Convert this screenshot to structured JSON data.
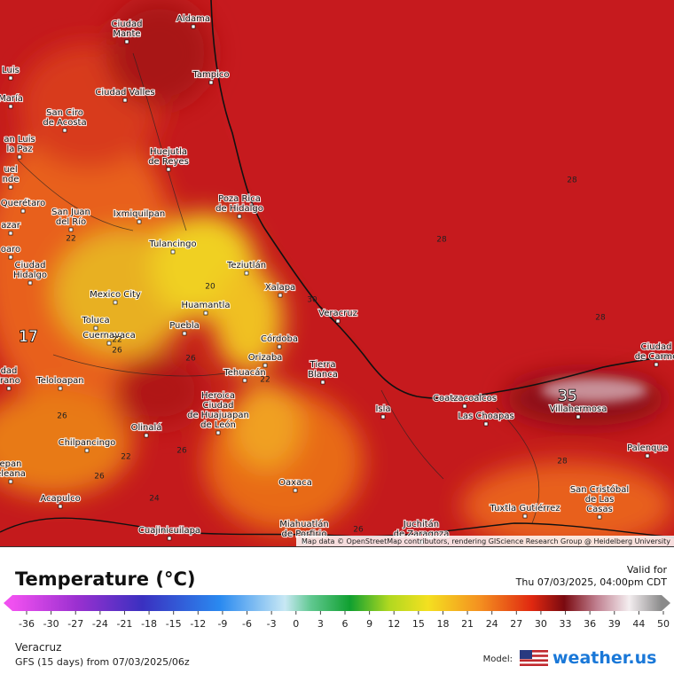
{
  "map": {
    "cities": [
      [
        "Aldama"
      ],
      [
        "Ciudad",
        "Mante"
      ],
      [
        "Tampico"
      ],
      [
        "Luis"
      ],
      [
        "María"
      ],
      [
        "an Luis",
        "la Paz"
      ],
      [
        "uel",
        "nde"
      ],
      [
        "Querétaro"
      ],
      [
        "azar"
      ],
      [
        "oaro"
      ],
      [
        "Ciudad",
        "Hidalgo"
      ],
      [
        "dad",
        "irano"
      ],
      [
        "Teloloapan"
      ],
      [
        "epan",
        "eleana"
      ],
      [
        "Ciudad Valles"
      ],
      [
        "San Ciro",
        "de Acosta"
      ],
      [
        "Huejutla",
        "de Reyes"
      ],
      [
        "Poza Rica",
        "de Hidalgo"
      ],
      [
        "San Juan",
        "del Río"
      ],
      [
        "Ixmiquilpan"
      ],
      [
        "Tulancingo"
      ],
      [
        "Teziutlán"
      ],
      [
        "Xalapa"
      ],
      [
        "Mexico City"
      ],
      [
        "Huamantla"
      ],
      [
        "Toluca"
      ],
      [
        "Puebla"
      ],
      [
        "Veracruz"
      ],
      [
        "Cuernavaca"
      ],
      [
        "Córdoba"
      ],
      [
        "Orizaba"
      ],
      [
        "Tierra",
        "Blanca"
      ],
      [
        "Tehuacán"
      ],
      [
        "Heroica",
        "Ciudad",
        "de Huajuapan",
        "de León"
      ],
      [
        "Coatzacoalcos"
      ],
      [
        "Isla"
      ],
      [
        "Las Choapas"
      ],
      [
        "Villahermosa"
      ],
      [
        "Olinalá"
      ],
      [
        "Chilpancingo"
      ],
      [
        "Ciudad",
        "de Carme"
      ],
      [
        "Palenque"
      ],
      [
        "Oaxaca"
      ],
      [
        "San Cristóbal",
        "de Las",
        "Casas"
      ],
      [
        "Acapulco"
      ],
      [
        "Tuxtla Gutiérrez"
      ],
      [
        "Miahuatlán",
        "de Porfirio"
      ],
      [
        "Juchitán",
        "de Zaragoza"
      ],
      [
        "Cuajinicuilapa"
      ]
    ],
    "contour_labels": [
      28,
      28,
      28,
      22,
      20,
      30,
      22,
      26,
      26,
      22,
      26,
      26,
      22,
      28,
      26,
      24,
      26
    ],
    "extreme_labels": [
      35,
      17
    ],
    "attribution": "Map data © OpenStreetMap contributors, rendering GIScience Research Group @ Heidelberg University"
  },
  "legend": {
    "title": "Temperature (°C)",
    "ticks": [
      -36,
      -30,
      -27,
      -24,
      -21,
      -18,
      -15,
      -12,
      -9,
      -6,
      -3,
      0,
      3,
      6,
      9,
      12,
      15,
      18,
      21,
      24,
      27,
      30,
      33,
      36,
      39,
      44,
      50
    ],
    "valid_label": "Valid for",
    "valid_time": "Thu 07/03/2025, 04:00pm CDT",
    "location": "Veracruz",
    "model_run": "GFS (15 days) from 07/03/2025/06z",
    "model_label": "Model:",
    "brand": "weather.us"
  }
}
